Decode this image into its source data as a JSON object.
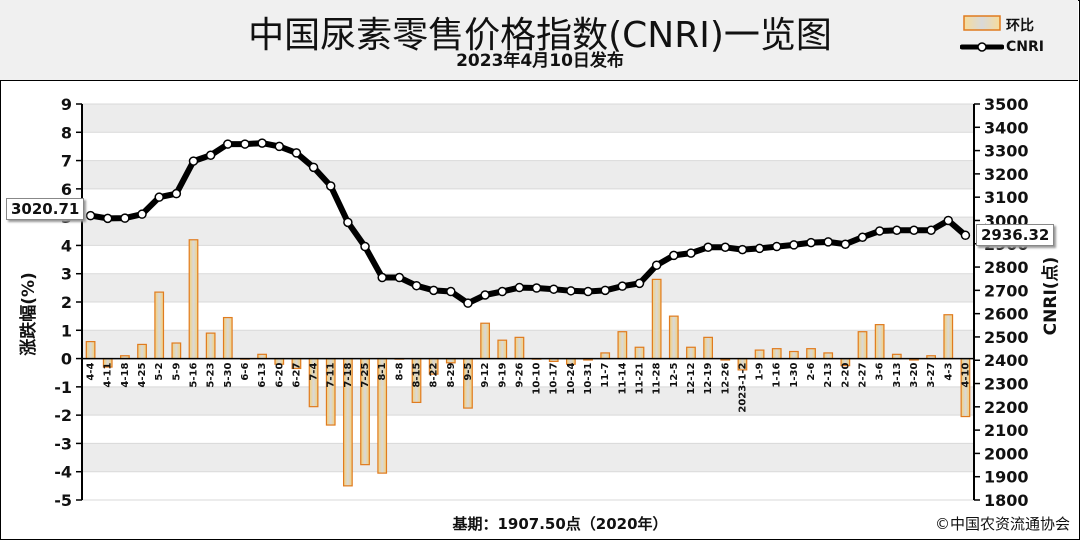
{
  "header": {
    "title": "中国尿素零售价格指数(CNRI)一览图",
    "subtitle": "2023年4月10日发布"
  },
  "legend": {
    "bar_label": "环比",
    "line_label": "CNRI"
  },
  "footer": {
    "base": "基期：1907.50点（2020年）",
    "copyright": "©中国农资流通协会"
  },
  "callouts": {
    "start_value": "3020.71",
    "end_value": "2936.32"
  },
  "colors": {
    "bar_fill": "#f2c46a",
    "bar_stroke": "#e07b1f",
    "line": "#000000",
    "grid": "#d9d9d9",
    "band": "#ececec"
  },
  "chart_data": {
    "type": "bar",
    "categories": [
      "4-4",
      "4-11",
      "4-18",
      "4-25",
      "5-2",
      "5-9",
      "5-16",
      "5-23",
      "5-30",
      "6-6",
      "6-13",
      "6-20",
      "6-27",
      "7-4",
      "7-11",
      "7-18",
      "7-25",
      "8-1",
      "8-8",
      "8-15",
      "8-22",
      "8-29",
      "9-5",
      "9-12",
      "9-19",
      "9-26",
      "10-10",
      "10-17",
      "10-24",
      "10-31",
      "11-7",
      "11-14",
      "11-21",
      "11-28",
      "12-5",
      "12-12",
      "12-19",
      "12-26",
      "2023-1-2",
      "1-9",
      "1-16",
      "1-30",
      "2-6",
      "2-13",
      "2-20",
      "2-27",
      "3-6",
      "3-13",
      "3-20",
      "3-27",
      "4-3",
      "4-10"
    ],
    "series": [
      {
        "name": "环比",
        "axis": "left",
        "values": [
          0.6,
          -0.3,
          0.1,
          0.5,
          2.35,
          0.55,
          4.2,
          0.9,
          1.45,
          0.0,
          0.15,
          -0.2,
          -0.35,
          -1.7,
          -2.35,
          -4.5,
          -3.75,
          -4.05,
          0.0,
          -1.55,
          -0.55,
          -0.15,
          -1.75,
          1.25,
          0.65,
          0.75,
          0.0,
          -0.1,
          -0.2,
          -0.05,
          0.2,
          0.95,
          0.4,
          2.8,
          1.5,
          0.4,
          0.75,
          -0.05,
          -0.4,
          0.3,
          0.35,
          0.25,
          0.35,
          0.2,
          -0.25,
          0.95,
          1.2,
          0.15,
          -0.05,
          0.1,
          1.55,
          -2.05
        ]
      },
      {
        "name": "CNRI",
        "axis": "right",
        "values": [
          3020.71,
          3009,
          3010,
          3027,
          3100,
          3115,
          3255,
          3280,
          3328,
          3328,
          3332,
          3318,
          3290,
          3228,
          3148,
          2992,
          2888,
          2755,
          2755,
          2720,
          2700,
          2695,
          2645,
          2680,
          2695,
          2712,
          2710,
          2705,
          2698,
          2695,
          2700,
          2718,
          2730,
          2808,
          2850,
          2860,
          2885,
          2885,
          2875,
          2880,
          2888,
          2895,
          2905,
          2908,
          2898,
          2928,
          2955,
          2958,
          2958,
          2958,
          3000,
          2936.32
        ]
      }
    ],
    "ylabel": "涨跌幅(%)",
    "y2label": "CNRI(点)",
    "ylim": [
      -5,
      9
    ],
    "y2lim": [
      1800,
      3500
    ],
    "yticks": [
      9,
      8,
      7,
      6,
      5,
      4,
      3,
      2,
      1,
      0,
      -1,
      -2,
      -3,
      -4,
      -5
    ],
    "y2ticks": [
      3500,
      3400,
      3300,
      3200,
      3100,
      3000,
      2900,
      2800,
      2700,
      2600,
      2500,
      2400,
      2300,
      2200,
      2100,
      2000,
      1900,
      1800
    ],
    "grid": true
  }
}
